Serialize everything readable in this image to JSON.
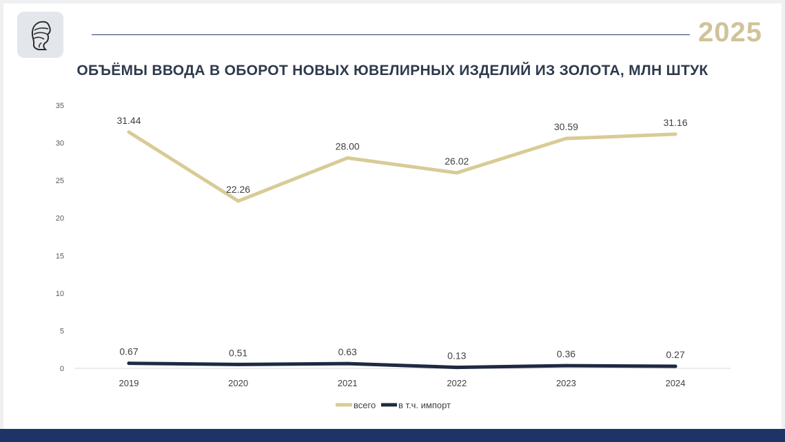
{
  "header": {
    "year": "2025",
    "title": "ОБЪЁМЫ ВВОДА В ОБОРОТ НОВЫХ ЮВЕЛИРНЫХ ИЗДЕЛИЙ ИЗ ЗОЛОТА, МЛН ШТУК"
  },
  "colors": {
    "total": "#d8cb95",
    "import": "#1e2a40",
    "footer": "#1d3466",
    "accent": "#cfc39a"
  },
  "chart_data": {
    "type": "line",
    "categories": [
      "2019",
      "2020",
      "2021",
      "2022",
      "2023",
      "2024"
    ],
    "series": [
      {
        "name": "всего",
        "values": [
          31.44,
          22.26,
          28.0,
          26.02,
          30.59,
          31.16
        ],
        "labels": [
          "31.44",
          "22.26",
          "28.00",
          "26.02",
          "30.59",
          "31.16"
        ]
      },
      {
        "name": "в т.ч. импорт",
        "values": [
          0.67,
          0.51,
          0.63,
          0.13,
          0.36,
          0.27
        ],
        "labels": [
          "0.67",
          "0.51",
          "0.63",
          "0.13",
          "0.36",
          "0.27"
        ]
      }
    ],
    "yticks": [
      "0",
      "5",
      "10",
      "15",
      "20",
      "25",
      "30",
      "35"
    ],
    "ylim": [
      0,
      35
    ],
    "grid": false,
    "legend": "bottom"
  }
}
